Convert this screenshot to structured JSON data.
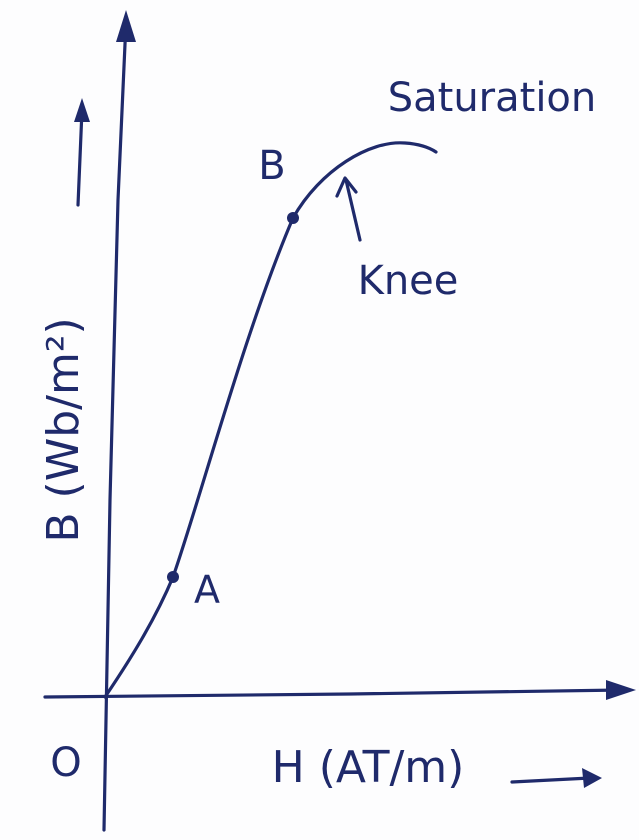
{
  "labels": {
    "saturation": "Saturation",
    "point_b": "B",
    "knee": "Knee",
    "point_a": "A",
    "origin": "O",
    "x_axis": "H (AT/m)",
    "y_axis": "B (Wb/m²)"
  }
}
